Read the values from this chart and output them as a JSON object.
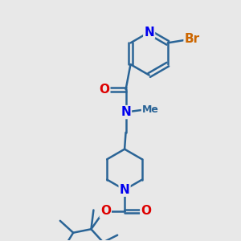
{
  "background_color": "#e8e8e8",
  "bond_color": "#2a6496",
  "bond_width": 1.8,
  "atom_colors": {
    "N": "#0000ee",
    "O": "#dd0000",
    "Br": "#cc6600",
    "C": "#2a6496"
  },
  "font_size_atom": 11,
  "fig_width": 3.0,
  "fig_height": 3.0,
  "dpi": 100
}
